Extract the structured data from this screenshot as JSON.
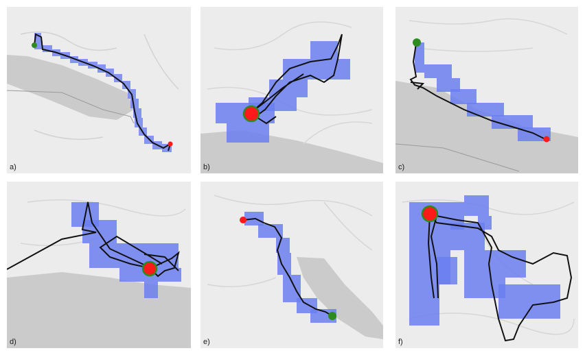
{
  "figure": {
    "panels": [
      {
        "id": "a",
        "label": "a)"
      },
      {
        "id": "b",
        "label": "b)"
      },
      {
        "id": "c",
        "label": "c)"
      },
      {
        "id": "d",
        "label": "d)"
      },
      {
        "id": "e",
        "label": "e)"
      },
      {
        "id": "f",
        "label": "f)"
      }
    ]
  },
  "colors": {
    "map_background": "#ececec",
    "lake": "#cbcbcb",
    "grid_cells": "#6b7ff0",
    "trajectory": "#111111",
    "start_marker": "#2e8b22",
    "end_marker": "#ff1a1a"
  }
}
